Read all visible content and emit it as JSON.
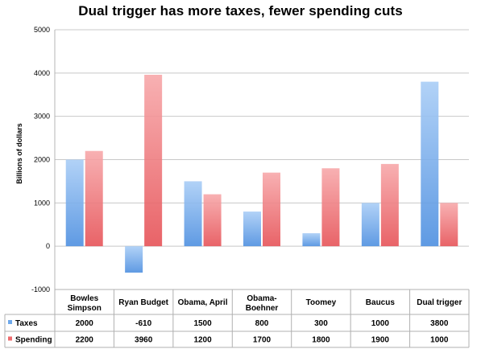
{
  "chart_data": {
    "type": "bar",
    "title": "Dual trigger has more taxes, fewer spending cuts",
    "ylabel": "Billions of dollars",
    "xlabel": "",
    "ylim": [
      -1000,
      5000
    ],
    "yticks": [
      -1000,
      0,
      1000,
      2000,
      3000,
      4000,
      5000
    ],
    "grid": true,
    "legend": "table-below",
    "categories": [
      "Bowles Simpson",
      "Ryan Budget",
      "Obama, April",
      "Obama-Boehner",
      "Toomey",
      "Baucus",
      "Dual trigger"
    ],
    "category_lines": [
      [
        "Bowles",
        "Simpson"
      ],
      [
        "Ryan Budget"
      ],
      [
        "Obama, April"
      ],
      [
        "Obama-",
        "Boehner"
      ],
      [
        "Toomey"
      ],
      [
        "Baucus"
      ],
      [
        "Dual trigger"
      ]
    ],
    "series": [
      {
        "name": "Taxes",
        "color": "#6ea9ec",
        "values": [
          2000,
          -610,
          1500,
          800,
          300,
          1000,
          3800
        ]
      },
      {
        "name": "Spending",
        "color": "#ee6b6e",
        "values": [
          2200,
          3960,
          1200,
          1700,
          1800,
          1900,
          1000
        ]
      }
    ]
  }
}
